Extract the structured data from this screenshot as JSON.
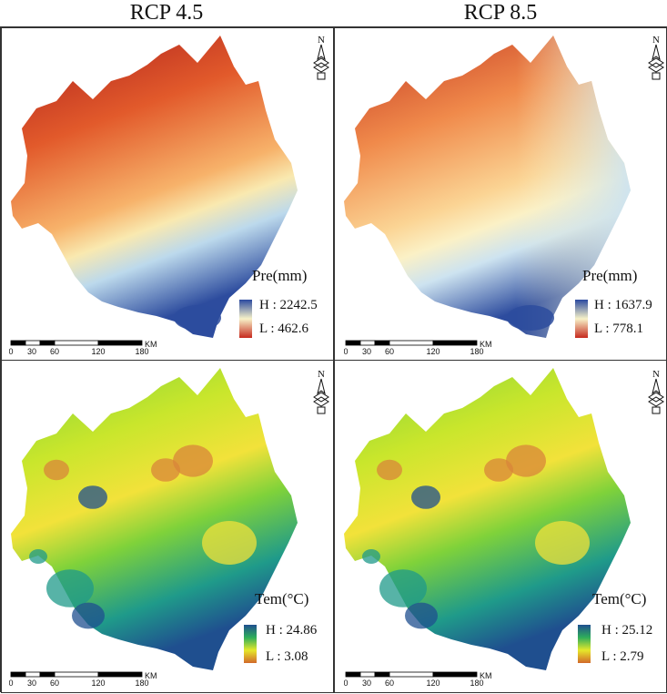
{
  "columns": [
    "RCP 4.5",
    "RCP 8.5"
  ],
  "scale": {
    "ticks": [
      "0",
      "30",
      "60",
      "120",
      "180"
    ],
    "unit": "KM"
  },
  "north_label": "N",
  "panels": [
    {
      "id": "pre-45",
      "variable": "precipitation",
      "legend_title": "Pre(mm)",
      "high_label": "H : 2242.5",
      "low_label": "L : 462.6",
      "ramp_colors": [
        "#2b4aa0",
        "#f7f2c8",
        "#c62a1e"
      ],
      "map_colors": [
        "#a91c1c",
        "#e25a2b",
        "#f7b26a",
        "#f9e9b0",
        "#bcd9ec",
        "#2d4c9e"
      ]
    },
    {
      "id": "pre-85",
      "variable": "precipitation",
      "legend_title": "Pre(mm)",
      "high_label": "H : 1637.9",
      "low_label": "L : 778.1",
      "ramp_colors": [
        "#2b4aa0",
        "#f7f2c8",
        "#c62a1e"
      ],
      "map_colors": [
        "#c0321f",
        "#f08a4b",
        "#fbd494",
        "#fbf1c6",
        "#cde3f0",
        "#2d4c9e"
      ]
    },
    {
      "id": "tem-45",
      "variable": "temperature",
      "legend_title": "Tem(°C)",
      "high_label": "H : 24.86",
      "low_label": "L : 3.08",
      "ramp_colors": [
        "#1f4f8f",
        "#2fae5a",
        "#e6e82a",
        "#d2692a"
      ],
      "map_colors": [
        "#7fd23a",
        "#c9e62c",
        "#f2e23a",
        "#d8853a",
        "#1f9a8a",
        "#1f4f8f"
      ]
    },
    {
      "id": "tem-85",
      "variable": "temperature",
      "legend_title": "Tem(°C)",
      "high_label": "H : 25.12",
      "low_label": "L : 2.79",
      "ramp_colors": [
        "#1f4f8f",
        "#2fae5a",
        "#e6e82a",
        "#d2692a"
      ],
      "map_colors": [
        "#7fd23a",
        "#c9e62c",
        "#f2e23a",
        "#d8853a",
        "#1f9a8a",
        "#1f4f8f"
      ]
    }
  ]
}
